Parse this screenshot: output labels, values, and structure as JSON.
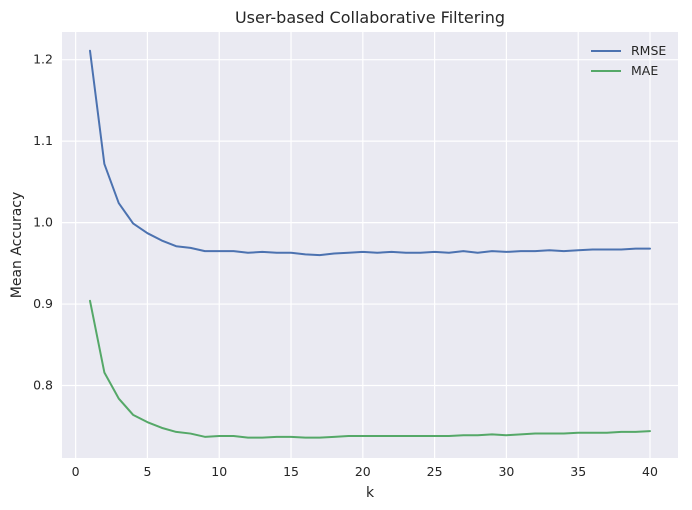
{
  "chart_data": {
    "type": "line",
    "title": "User-based Collaborative Filtering",
    "xlabel": "k",
    "ylabel": "Mean Accuracy",
    "xlim": [
      -0.95,
      41.95
    ],
    "ylim": [
      0.711,
      1.234
    ],
    "xticks": [
      0,
      5,
      10,
      15,
      20,
      25,
      30,
      35,
      40
    ],
    "yticks": [
      0.8,
      0.9,
      1.0,
      1.1,
      1.2
    ],
    "xtick_labels": [
      "0",
      "5",
      "10",
      "15",
      "20",
      "25",
      "30",
      "35",
      "40"
    ],
    "ytick_labels": [
      "0.8",
      "0.9",
      "1.0",
      "1.1",
      "1.2"
    ],
    "grid": true,
    "legend_position": "top-right",
    "background": "#EAEAF2",
    "x": [
      1,
      2,
      3,
      4,
      5,
      6,
      7,
      8,
      9,
      10,
      11,
      12,
      13,
      14,
      15,
      16,
      17,
      18,
      19,
      20,
      21,
      22,
      23,
      24,
      25,
      26,
      27,
      28,
      29,
      30,
      31,
      32,
      33,
      34,
      35,
      36,
      37,
      38,
      39,
      40
    ],
    "series": [
      {
        "name": "RMSE",
        "color": "#4C72B0",
        "values": [
          1.211,
          1.072,
          1.024,
          0.999,
          0.987,
          0.978,
          0.971,
          0.969,
          0.965,
          0.965,
          0.965,
          0.963,
          0.964,
          0.963,
          0.963,
          0.961,
          0.96,
          0.962,
          0.963,
          0.964,
          0.963,
          0.964,
          0.963,
          0.963,
          0.964,
          0.963,
          0.965,
          0.963,
          0.965,
          0.964,
          0.965,
          0.965,
          0.966,
          0.965,
          0.966,
          0.967,
          0.967,
          0.967,
          0.968,
          0.968
        ]
      },
      {
        "name": "MAE",
        "color": "#55A868",
        "values": [
          0.904,
          0.816,
          0.784,
          0.764,
          0.755,
          0.748,
          0.743,
          0.741,
          0.737,
          0.738,
          0.738,
          0.736,
          0.736,
          0.737,
          0.737,
          0.736,
          0.736,
          0.737,
          0.738,
          0.738,
          0.738,
          0.738,
          0.738,
          0.738,
          0.738,
          0.738,
          0.739,
          0.739,
          0.74,
          0.739,
          0.74,
          0.741,
          0.741,
          0.741,
          0.742,
          0.742,
          0.742,
          0.743,
          0.743,
          0.744
        ]
      }
    ]
  }
}
